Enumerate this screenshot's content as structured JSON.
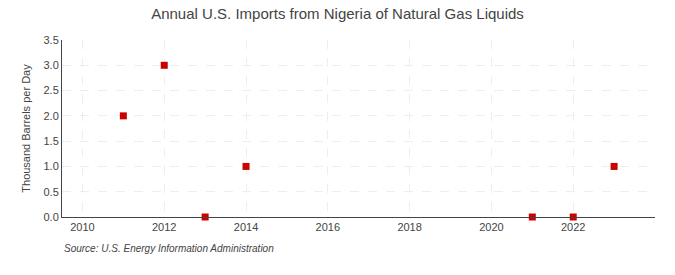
{
  "chart_data": {
    "type": "scatter",
    "title": "Annual U.S. Imports from Nigeria of Natural Gas Liquids",
    "ylabel": "Thousand Barrels per Day",
    "source": "Source: U.S. Energy Information Administration",
    "x": [
      2011,
      2012,
      2013,
      2014,
      2021,
      2022,
      2023
    ],
    "values": [
      2.0,
      3.0,
      0.0,
      1.0,
      0.0,
      0.0,
      1.0
    ],
    "color": "#cc0000",
    "marker": "square",
    "xlim": [
      2009.5,
      2024.0
    ],
    "xticks": [
      2010,
      2012,
      2014,
      2016,
      2018,
      2020,
      2022
    ],
    "ylim": [
      0.0,
      3.5
    ],
    "yticks": [
      {
        "value": 0.0,
        "label": "0.0"
      },
      0.5,
      {
        "value": 1.0,
        "label": "1.0"
      },
      1.5,
      {
        "value": 2.0,
        "label": "2.0"
      },
      2.5,
      {
        "value": 3.0,
        "label": "3.0"
      },
      3.5
    ],
    "grid": true
  }
}
